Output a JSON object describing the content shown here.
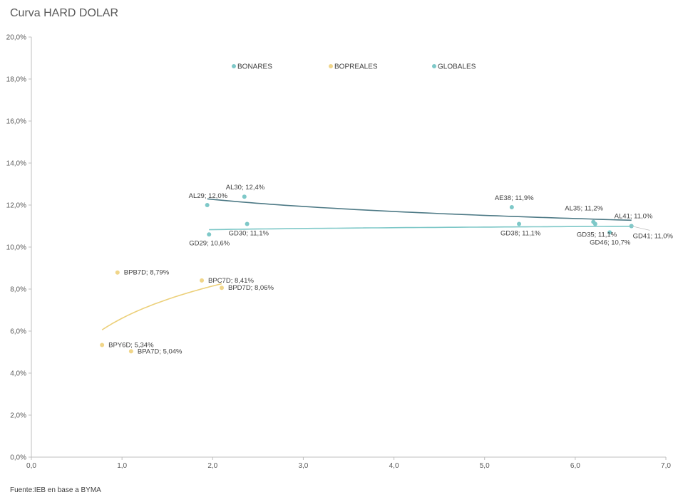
{
  "title": "Curva HARD DOLAR",
  "source": "Fuente:IEB en base a BYMA",
  "chart_data": {
    "type": "scatter",
    "title": "Curva HARD DOLAR",
    "xlim": [
      0,
      7
    ],
    "ylim": [
      0,
      20
    ],
    "x_ticks": [
      0,
      1,
      2,
      3,
      4,
      5,
      6,
      7
    ],
    "y_ticks": [
      0,
      2,
      4,
      6,
      8,
      10,
      12,
      14,
      16,
      18,
      20
    ],
    "x_tick_labels": [
      "0,0",
      "1,0",
      "2,0",
      "3,0",
      "4,0",
      "5,0",
      "6,0",
      "7,0"
    ],
    "y_tick_labels": [
      "0,0%",
      "2,0%",
      "4,0%",
      "6,0%",
      "8,0%",
      "10,0%",
      "12,0%",
      "14,0%",
      "16,0%",
      "18,0%",
      "20,0%"
    ],
    "grid": false,
    "legend_position": "top",
    "series": [
      {
        "name": "BONARES",
        "color": "#7ec8c8",
        "trend_color": "#4e7a86",
        "trend": "log",
        "points": [
          {
            "label": "AL29; 12,0%",
            "x": 1.94,
            "y": 12.0
          },
          {
            "label": "AL30; 12,4%",
            "x": 2.35,
            "y": 12.4
          },
          {
            "label": "AE38; 11,9%",
            "x": 5.3,
            "y": 11.9
          },
          {
            "label": "AL35; 11,2%",
            "x": 6.2,
            "y": 11.2
          },
          {
            "label": "AL41; 11,0%",
            "x": 6.62,
            "y": 11.0
          }
        ]
      },
      {
        "name": "BOPREALES",
        "color": "#f0d589",
        "trend_color": "#ecd07a",
        "trend": "log",
        "points": [
          {
            "label": "BPB7D; 8,79%",
            "x": 0.95,
            "y": 8.79
          },
          {
            "label": "BPC7D; 8,41%",
            "x": 1.88,
            "y": 8.41
          },
          {
            "label": "BPD7D; 8,06%",
            "x": 2.1,
            "y": 8.06
          },
          {
            "label": "BPY6D; 5,34%",
            "x": 0.78,
            "y": 5.34
          },
          {
            "label": "BPA7D; 5,04%",
            "x": 1.1,
            "y": 5.04
          }
        ]
      },
      {
        "name": "GLOBALES",
        "color": "#7ec8c8",
        "trend_color": "#7ec8c8",
        "trend": "log",
        "points": [
          {
            "label": "GD29; 10,6%",
            "x": 1.96,
            "y": 10.6
          },
          {
            "label": "GD30; 11,1%",
            "x": 2.38,
            "y": 11.1
          },
          {
            "label": "GD38; 11,1%",
            "x": 5.38,
            "y": 11.1
          },
          {
            "label": "GD35; 11,1%",
            "x": 6.22,
            "y": 11.1
          },
          {
            "label": "GD46; 10,7%",
            "x": 6.38,
            "y": 10.7
          },
          {
            "label": "GD41; 11,0%",
            "x": 6.62,
            "y": 11.0
          }
        ]
      }
    ]
  }
}
